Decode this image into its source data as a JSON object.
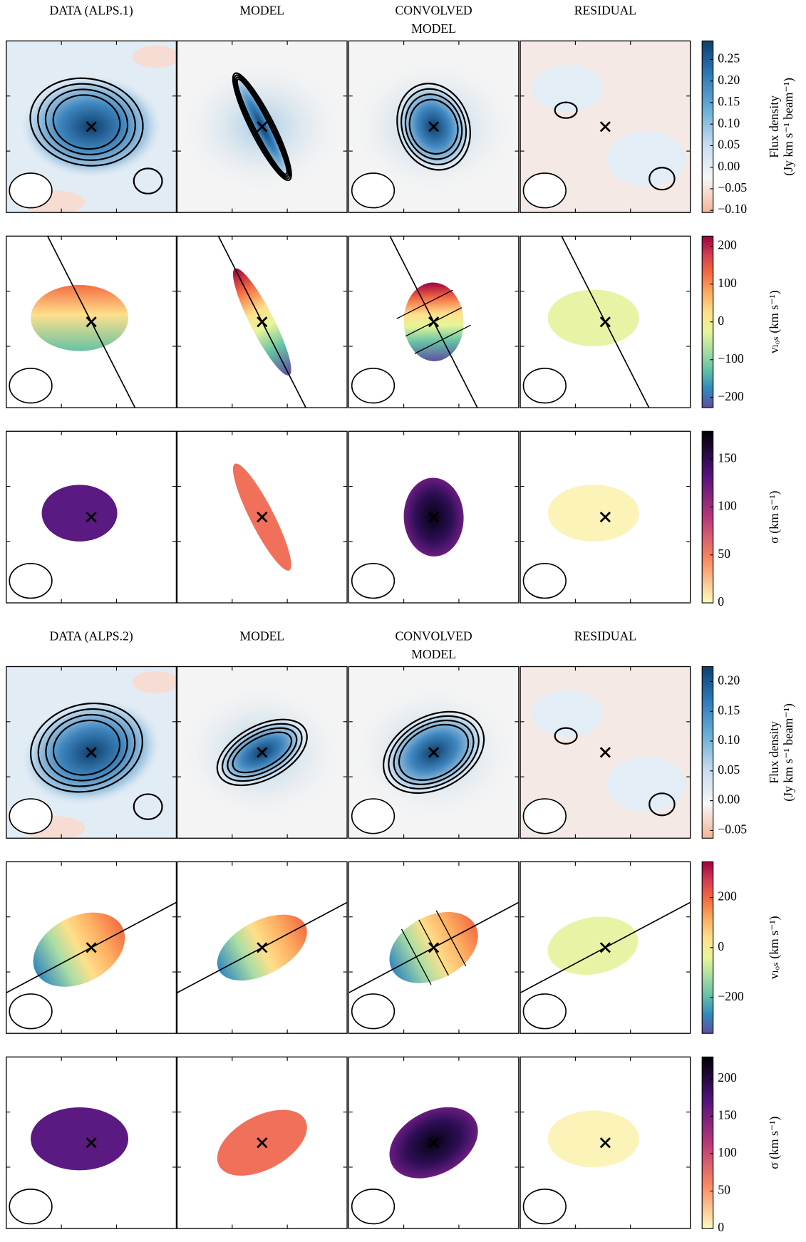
{
  "figures": [
    {
      "titles": [
        [
          "DATA (ALPS.1)"
        ],
        [
          "MODEL"
        ],
        [
          "CONVOLVED",
          "MODEL"
        ],
        [
          "RESIDUAL"
        ]
      ],
      "rows": [
        {
          "kind": "flux",
          "label": [
            "Flux density",
            "(Jy km s⁻¹ beam⁻¹)"
          ],
          "ylim": [
            -0.105,
            0.293
          ],
          "yticks": [
            {
              "value": -0.1,
              "label": "−0.10"
            },
            {
              "value": -0.05,
              "label": "−0.05"
            },
            {
              "value": 0,
              "label": "0.00"
            },
            0.05,
            {
              "value": 0.1,
              "label": "0.10"
            },
            0.15,
            {
              "value": 0.2,
              "label": "0.20"
            },
            0.25
          ],
          "colors": [
            "#f4b395",
            "#f7f7f7",
            "#c6dbef",
            "#6baed6",
            "#2f7ab8",
            "#0d3f6e"
          ]
        },
        {
          "kind": "vlos",
          "label": [
            "vₗₒₛ (km s⁻¹)"
          ],
          "ylim": [
            -227,
            227
          ],
          "yticks": [
            {
              "value": -200,
              "label": "−200"
            },
            {
              "value": -100,
              "label": "−100"
            },
            0,
            100,
            200
          ],
          "colors": [
            "#5e4fa2",
            "#3288bd",
            "#66c2a5",
            "#abdda4",
            "#e6f598",
            "#fee08b",
            "#fdae61",
            "#f46d43",
            "#d53e4f",
            "#9e0142"
          ]
        },
        {
          "kind": "sigma",
          "label": [
            "σ (km s⁻¹)"
          ],
          "ylim": [
            0,
            179
          ],
          "yticks": [
            0,
            50,
            100,
            150
          ],
          "colors": [
            "#fcfdbf",
            "#fc8961",
            "#b73779",
            "#51127c",
            "#000004"
          ]
        }
      ]
    },
    {
      "titles": [
        [
          "DATA (ALPS.2)"
        ],
        [
          "MODEL"
        ],
        [
          "CONVOLVED",
          "MODEL"
        ],
        [
          "RESIDUAL"
        ]
      ],
      "rows": [
        {
          "kind": "flux",
          "label": [
            "Flux density",
            "(Jy km s⁻¹ beam⁻¹)"
          ],
          "ylim": [
            -0.063,
            0.225
          ],
          "yticks": [
            {
              "value": -0.05,
              "label": "−0.05"
            },
            {
              "value": 0,
              "label": "0.00"
            },
            0.05,
            {
              "value": 0.1,
              "label": "0.10"
            },
            0.15,
            {
              "value": 0.2,
              "label": "0.20"
            }
          ],
          "colors": [
            "#f4b395",
            "#f7f7f7",
            "#c6dbef",
            "#6baed6",
            "#2f7ab8",
            "#0d3f6e"
          ]
        },
        {
          "kind": "vlos",
          "label": [
            "vₗₒₛ (km s⁻¹)"
          ],
          "ylim": [
            -343,
            343
          ],
          "yticks": [
            {
              "value": -200,
              "label": "−200"
            },
            0,
            200
          ],
          "colors": [
            "#5e4fa2",
            "#3288bd",
            "#66c2a5",
            "#abdda4",
            "#e6f598",
            "#fee08b",
            "#fdae61",
            "#f46d43",
            "#d53e4f",
            "#9e0142"
          ]
        },
        {
          "kind": "sigma",
          "label": [
            "σ (km s⁻¹)"
          ],
          "ylim": [
            0,
            229
          ],
          "yticks": [
            0,
            50,
            100,
            150,
            200
          ],
          "colors": [
            "#fcfdbf",
            "#fc8961",
            "#b73779",
            "#51127c",
            "#000004"
          ]
        }
      ]
    }
  ]
}
